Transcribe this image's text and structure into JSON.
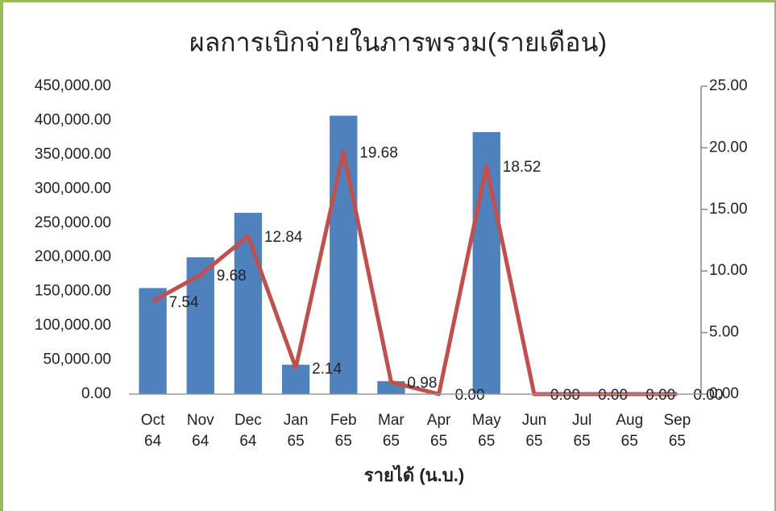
{
  "chart_data": {
    "type": "bar-line",
    "title": "ผลการเบิกจ่ายในภารพรวม(รายเดือน)",
    "x_label": "รายได้ (น.บ.)",
    "categories": [
      "Oct 64",
      "Nov 64",
      "Dec 64",
      "Jan 65",
      "Feb 65",
      "Mar 65",
      "Apr 65",
      "May 65",
      "Jun 65",
      "Jul 65",
      "Aug 65",
      "Sep 65"
    ],
    "series": [
      {
        "type": "bar",
        "color": "#4f81bd",
        "values": [
          155000,
          200000,
          265000,
          43000,
          407000,
          19000,
          0,
          383000,
          0,
          0,
          0,
          0
        ]
      },
      {
        "type": "line",
        "axis": "y2",
        "color": "#c0504d",
        "values": [
          7.54,
          9.68,
          12.84,
          2.14,
          19.68,
          0.98,
          0,
          18.52,
          0,
          0,
          0,
          0
        ],
        "value_labels": [
          "7.54",
          "9.68",
          "12.84",
          "2.14",
          "19.68",
          "0.98",
          "0.00",
          "18.52",
          "0.00",
          "0.00",
          "0.00",
          "0.00"
        ]
      }
    ],
    "ylim": [
      0,
      450000
    ],
    "yticks": [
      {
        "value": 0,
        "label": "0.00"
      },
      {
        "value": 50000,
        "label": "50,000.00"
      },
      {
        "value": 100000,
        "label": "100,000.00"
      },
      {
        "value": 150000,
        "label": "150,000.00"
      },
      {
        "value": 200000,
        "label": "200,000.00"
      },
      {
        "value": 250000,
        "label": "250,000.00"
      },
      {
        "value": 300000,
        "label": "300,000.00"
      },
      {
        "value": 350000,
        "label": "350,000.00"
      },
      {
        "value": 400000,
        "label": "400,000.00"
      },
      {
        "value": 450000,
        "label": "450,000.00"
      }
    ],
    "y2lim": [
      0,
      25
    ],
    "y2ticks": [
      {
        "value": 0,
        "label": "0.00"
      },
      {
        "value": 5,
        "label": "5.00"
      },
      {
        "value": 10,
        "label": "10.00"
      },
      {
        "value": 15,
        "label": "15.00"
      },
      {
        "value": 20,
        "label": "20.00"
      },
      {
        "value": 25,
        "label": "25.00"
      }
    ]
  }
}
